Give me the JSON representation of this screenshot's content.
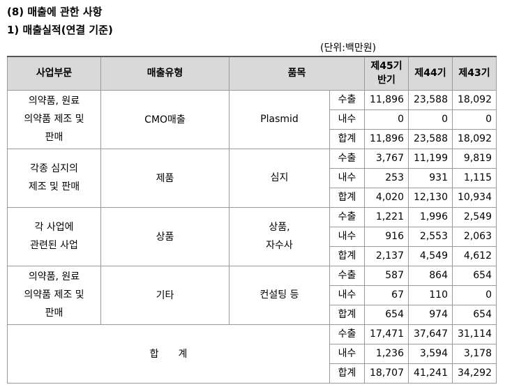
{
  "title": "(8) 매출에 관한 사항",
  "subtitle": "1) 매출실적(연결 기준)",
  "unit": "(단위:백만원)",
  "headers": {
    "division": "사업부문",
    "type": "매출유형",
    "item": "품목",
    "p45_line1": "제45기",
    "p45_line2": "반기",
    "p44": "제44기",
    "p43": "제43기"
  },
  "groups": [
    {
      "division": [
        "의약품, 원료",
        "의약품 제조 및",
        "판매"
      ],
      "type": "CMO매출",
      "item": [
        "Plasmid"
      ],
      "rows": [
        {
          "kind": "수출",
          "p45": "11,896",
          "p44": "23,588",
          "p43": "18,092"
        },
        {
          "kind": "내수",
          "p45": "0",
          "p44": "0",
          "p43": "0"
        },
        {
          "kind": "합계",
          "p45": "11,896",
          "p44": "23,588",
          "p43": "18,092"
        }
      ]
    },
    {
      "division": [
        "각종 심지의",
        "제조 및 판매"
      ],
      "type": "제품",
      "item": [
        "심지"
      ],
      "rows": [
        {
          "kind": "수출",
          "p45": "3,767",
          "p44": "11,199",
          "p43": "9,819"
        },
        {
          "kind": "내수",
          "p45": "253",
          "p44": "931",
          "p43": "1,115"
        },
        {
          "kind": "합계",
          "p45": "4,020",
          "p44": "12,130",
          "p43": "10,934"
        }
      ]
    },
    {
      "division": [
        "각 사업에",
        "관련된 사업"
      ],
      "type": "상품",
      "item": [
        "상품,",
        "자수사"
      ],
      "rows": [
        {
          "kind": "수출",
          "p45": "1,221",
          "p44": "1,996",
          "p43": "2,549"
        },
        {
          "kind": "내수",
          "p45": "916",
          "p44": "2,553",
          "p43": "2,063"
        },
        {
          "kind": "합계",
          "p45": "2,137",
          "p44": "4,549",
          "p43": "4,612"
        }
      ]
    },
    {
      "division": [
        "의약품, 원료",
        "의약품 제조 및",
        "판매"
      ],
      "type": "기타",
      "item": [
        "컨설팅 등"
      ],
      "rows": [
        {
          "kind": "수출",
          "p45": "587",
          "p44": "864",
          "p43": "654"
        },
        {
          "kind": "내수",
          "p45": "67",
          "p44": "110",
          "p43": "0"
        },
        {
          "kind": "합계",
          "p45": "654",
          "p44": "974",
          "p43": "654"
        }
      ]
    }
  ],
  "total": {
    "label": "합　　계",
    "rows": [
      {
        "kind": "수출",
        "p45": "17,471",
        "p44": "37,647",
        "p43": "31,114"
      },
      {
        "kind": "내수",
        "p45": "1,236",
        "p44": "3,594",
        "p43": "3,178"
      },
      {
        "kind": "합계",
        "p45": "18,707",
        "p44": "41,241",
        "p43": "34,292"
      }
    ]
  }
}
